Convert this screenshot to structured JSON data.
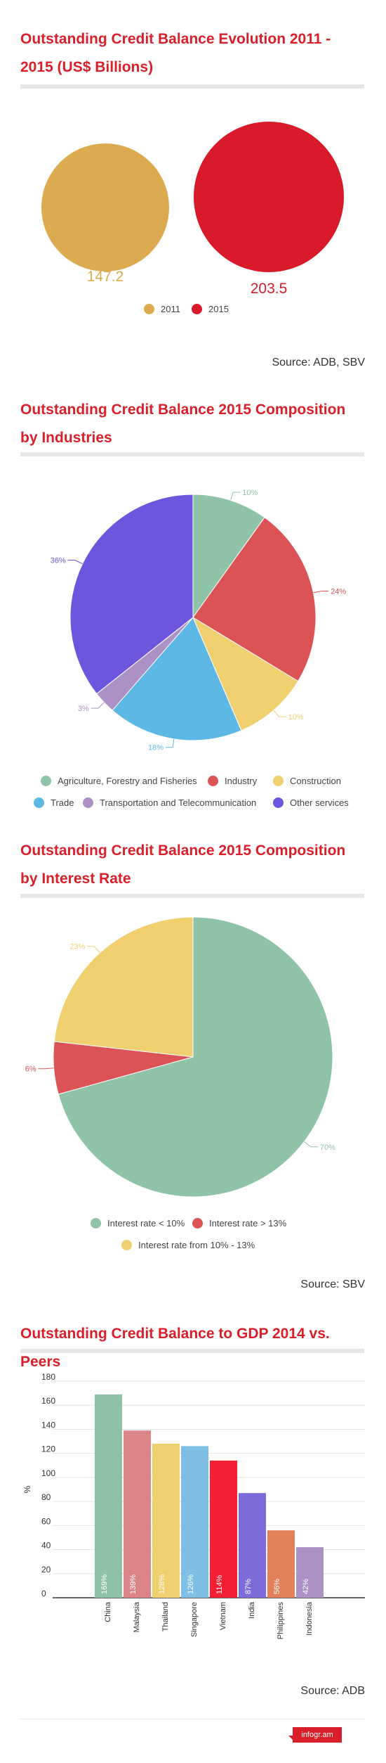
{
  "section1": {
    "title": "Outstanding Credit Balance Evolution 2011 - 2015 (US$ Billions)",
    "source": "Source: ADB, SBV"
  },
  "section2": {
    "title": "Outstanding Credit Balance 2015 Composition by Industries"
  },
  "section3": {
    "title": "Outstanding Credit Balance 2015 Composition by Interest Rate",
    "source": "Source: SBV"
  },
  "section4": {
    "title": "Outstanding Credit Balance to GDP 2014 vs. Peers",
    "source": "Source: ADB"
  },
  "footer": {
    "brand": "infogr.am"
  },
  "chart_data": [
    {
      "type": "bubble",
      "categories": [
        "2011",
        "2015"
      ],
      "values": [
        147.2,
        203.5
      ],
      "value_labels": [
        "147.2",
        "203.5"
      ],
      "colors": [
        "#dcab4f",
        "#d91a2a"
      ],
      "legend": "bottom"
    },
    {
      "type": "pie",
      "labels": [
        "Agriculture, Forestry and Fisheries",
        "Industry",
        "Construction",
        "Trade",
        "Transportation and Telecommunication",
        "Other services"
      ],
      "values": [
        10,
        24,
        10,
        18,
        3,
        36
      ],
      "value_labels": [
        "10%",
        "24%",
        "10%",
        "18%",
        "3%",
        "36%"
      ],
      "colors": [
        "#8ec3a7",
        "#dc5356",
        "#f0cf6e",
        "#5db8e6",
        "#ab91c6",
        "#6e55de"
      ],
      "legend": "bottom"
    },
    {
      "type": "pie",
      "labels": [
        "Interest rate < 10%",
        "Interest rate > 13%",
        "Interest rate from 10% - 13%"
      ],
      "values": [
        70,
        6,
        23
      ],
      "value_labels": [
        "70%",
        "6%",
        "23%"
      ],
      "colors": [
        "#8ec3a7",
        "#dc5356",
        "#f0cf6e"
      ],
      "legend": "bottom"
    },
    {
      "type": "bar",
      "categories": [
        "China",
        "Malaysia",
        "Thailand",
        "Singapore",
        "Vietnam",
        "India",
        "Philippines",
        "Indonesia"
      ],
      "values": [
        169,
        139,
        128,
        126,
        114,
        87,
        56,
        42
      ],
      "value_labels": [
        "169%",
        "139%",
        "128%",
        "126%",
        "114%",
        "87%",
        "56%",
        "42%"
      ],
      "colors": [
        "#8ec3a7",
        "#dc8588",
        "#f0cf6e",
        "#7fbfe3",
        "#f51f33",
        "#7c6bd8",
        "#e2805a",
        "#ab91c6"
      ],
      "ylabel": "%",
      "ylim": [
        0,
        180
      ],
      "yticks": [
        "0",
        "20",
        "40",
        "60",
        "80",
        "100",
        "120",
        "140",
        "160",
        "180"
      ],
      "grid": true
    }
  ]
}
